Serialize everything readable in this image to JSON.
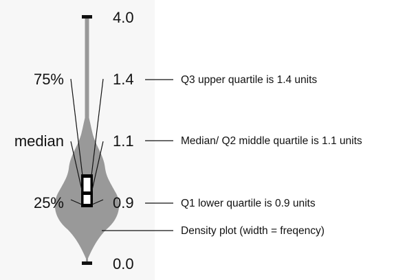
{
  "diagram": {
    "scale_labels": {
      "max": "4.0",
      "q3": "1.4",
      "median": "1.1",
      "q1": "0.9",
      "min": "0.0"
    },
    "left_labels": {
      "q3": "75%",
      "median": "median",
      "q1": "25%"
    },
    "annotations": {
      "q3": "Q3 upper quartile is 1.4 units",
      "median": "Median/ Q2 middle quartile is 1.1 units",
      "q1": "Q1 lower quartile is 0.9 units",
      "density": "Density plot (width = freqency)"
    },
    "colors": {
      "violin": "#999999",
      "box": "#000000",
      "median_fill": "#ffffff",
      "lines": "#111111",
      "panel": "#f7f7f7"
    }
  }
}
